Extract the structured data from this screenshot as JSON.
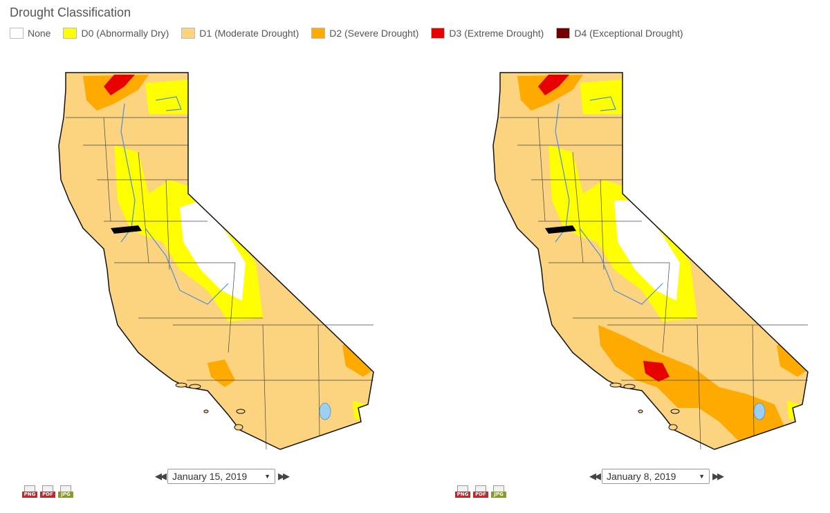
{
  "title": "Drought Classification",
  "legend": [
    {
      "label": "None",
      "color": "#ffffff"
    },
    {
      "label": "D0 (Abnormally Dry)",
      "color": "#ffff00"
    },
    {
      "label": "D1 (Moderate Drought)",
      "color": "#fcd37f"
    },
    {
      "label": "D2 (Severe Drought)",
      "color": "#ffaa00"
    },
    {
      "label": "D3 (Extreme Drought)",
      "color": "#e60000"
    },
    {
      "label": "D4 (Exceptional Drought)",
      "color": "#730000"
    }
  ],
  "maps": [
    {
      "date": "January 15, 2019"
    },
    {
      "date": "January 8, 2019"
    }
  ],
  "downloads": [
    {
      "label": "PNG",
      "color": "#c0282d",
      "icon": "png-file-icon"
    },
    {
      "label": "PDF",
      "color": "#c0282d",
      "icon": "pdf-file-icon"
    },
    {
      "label": "JPG",
      "color": "#8a9a2a",
      "icon": "jpg-file-icon"
    }
  ]
}
